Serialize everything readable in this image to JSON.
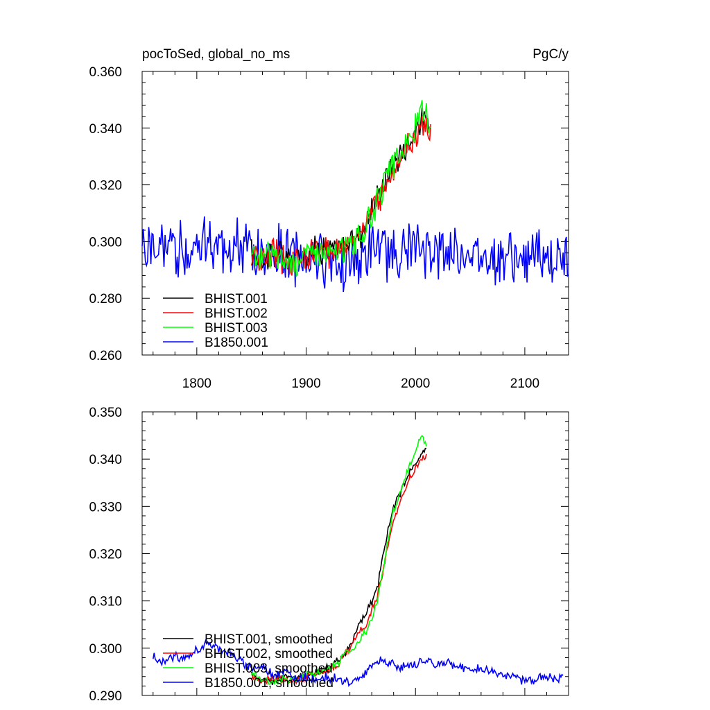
{
  "colors": {
    "BHIST.001": "#000000",
    "BHIST.002": "#ff0000",
    "BHIST.003": "#00ff00",
    "B1850.001": "#0000ff"
  },
  "chart_data": [
    {
      "type": "line",
      "title_left": "pocToSed, global_no_ms",
      "title_right": "PgC/y",
      "xlim": [
        1750,
        2140
      ],
      "ylim": [
        0.26,
        0.36
      ],
      "xticks": [
        1800,
        1900,
        2000,
        2100
      ],
      "xtick_labels": [
        "1800",
        "1900",
        "2000",
        "2100"
      ],
      "yticks": [
        0.26,
        0.28,
        0.3,
        0.32,
        0.34,
        0.36
      ],
      "ytick_labels": [
        "0.260",
        "0.280",
        "0.300",
        "0.320",
        "0.340",
        "0.360"
      ],
      "legend_position": "bottom-left",
      "series": [
        {
          "name": "BHIST.001",
          "x": [
            1850,
            1860,
            1870,
            1880,
            1890,
            1900,
            1910,
            1920,
            1930,
            1940,
            1950,
            1960,
            1970,
            1980,
            1990,
            2000,
            2005,
            2010,
            2014
          ],
          "values": [
            0.296,
            0.293,
            0.297,
            0.295,
            0.294,
            0.296,
            0.298,
            0.297,
            0.297,
            0.3,
            0.303,
            0.311,
            0.32,
            0.328,
            0.333,
            0.339,
            0.343,
            0.341,
            0.34
          ]
        },
        {
          "name": "BHIST.002",
          "x": [
            1850,
            1860,
            1870,
            1880,
            1890,
            1900,
            1910,
            1920,
            1930,
            1940,
            1950,
            1960,
            1970,
            1980,
            1990,
            2000,
            2005,
            2010,
            2014
          ],
          "values": [
            0.295,
            0.293,
            0.296,
            0.294,
            0.293,
            0.295,
            0.297,
            0.296,
            0.298,
            0.3,
            0.305,
            0.309,
            0.318,
            0.326,
            0.332,
            0.337,
            0.342,
            0.34,
            0.338
          ]
        },
        {
          "name": "BHIST.003",
          "x": [
            1850,
            1860,
            1870,
            1880,
            1890,
            1900,
            1910,
            1920,
            1930,
            1940,
            1950,
            1960,
            1970,
            1980,
            1990,
            2000,
            2005,
            2010,
            2014
          ],
          "values": [
            0.295,
            0.294,
            0.296,
            0.293,
            0.293,
            0.296,
            0.297,
            0.295,
            0.297,
            0.299,
            0.302,
            0.309,
            0.319,
            0.327,
            0.333,
            0.34,
            0.346,
            0.343,
            0.341
          ]
        },
        {
          "name": "B1850.001",
          "x": [
            1750,
            1760,
            1770,
            1780,
            1790,
            1800,
            1810,
            1820,
            1830,
            1840,
            1850,
            1860,
            1870,
            1880,
            1890,
            1900,
            1910,
            1920,
            1930,
            1940,
            1950,
            1960,
            1970,
            1980,
            1990,
            2000,
            2010,
            2020,
            2030,
            2040,
            2050,
            2060,
            2070,
            2080,
            2090,
            2100,
            2110,
            2120,
            2130,
            2140
          ],
          "values": [
            0.298,
            0.297,
            0.297,
            0.298,
            0.297,
            0.299,
            0.3,
            0.299,
            0.297,
            0.297,
            0.296,
            0.296,
            0.295,
            0.296,
            0.294,
            0.295,
            0.295,
            0.294,
            0.294,
            0.293,
            0.294,
            0.296,
            0.297,
            0.296,
            0.296,
            0.297,
            0.297,
            0.296,
            0.297,
            0.296,
            0.296,
            0.295,
            0.296,
            0.295,
            0.294,
            0.293,
            0.294,
            0.294,
            0.293,
            0.294
          ]
        }
      ],
      "noise": [
        0,
        0.004,
        0.004,
        0.004,
        0.008
      ]
    },
    {
      "type": "line",
      "xlim": [
        1750,
        2140
      ],
      "ylim": [
        0.29,
        0.35
      ],
      "xticks": [
        1800,
        1900,
        2000,
        2100
      ],
      "yticks": [
        0.29,
        0.3,
        0.31,
        0.32,
        0.33,
        0.34,
        0.35
      ],
      "ytick_labels": [
        "0.290",
        "0.300",
        "0.310",
        "0.320",
        "0.330",
        "0.340",
        "0.350"
      ],
      "legend_position": "bottom-left",
      "series": [
        {
          "name": "BHIST.001, smoothed",
          "x": [
            1850,
            1860,
            1870,
            1880,
            1890,
            1900,
            1910,
            1920,
            1930,
            1935,
            1940,
            1945,
            1950,
            1955,
            1960,
            1965,
            1970,
            1975,
            1980,
            1985,
            1990,
            1995,
            2000,
            2005,
            2010
          ],
          "values": [
            0.2945,
            0.2935,
            0.293,
            0.294,
            0.2935,
            0.2945,
            0.295,
            0.296,
            0.2975,
            0.299,
            0.3,
            0.303,
            0.3055,
            0.3075,
            0.31,
            0.3125,
            0.319,
            0.325,
            0.33,
            0.332,
            0.335,
            0.3375,
            0.339,
            0.341,
            0.342
          ]
        },
        {
          "name": "BHIST.002, smoothed",
          "x": [
            1850,
            1860,
            1870,
            1880,
            1890,
            1900,
            1910,
            1920,
            1930,
            1935,
            1940,
            1945,
            1950,
            1955,
            1960,
            1965,
            1970,
            1975,
            1980,
            1985,
            1990,
            1995,
            2000,
            2005,
            2010
          ],
          "values": [
            0.294,
            0.293,
            0.2935,
            0.2935,
            0.293,
            0.294,
            0.2945,
            0.2955,
            0.2965,
            0.2985,
            0.3,
            0.302,
            0.304,
            0.305,
            0.308,
            0.311,
            0.316,
            0.322,
            0.327,
            0.33,
            0.333,
            0.336,
            0.338,
            0.34,
            0.3405
          ]
        },
        {
          "name": "BHIST.003, smoothed",
          "x": [
            1850,
            1860,
            1870,
            1880,
            1890,
            1900,
            1910,
            1920,
            1930,
            1935,
            1940,
            1945,
            1950,
            1955,
            1960,
            1965,
            1970,
            1975,
            1980,
            1985,
            1990,
            1995,
            2000,
            2005,
            2010
          ],
          "values": [
            0.2945,
            0.2935,
            0.2925,
            0.2935,
            0.293,
            0.2945,
            0.2945,
            0.2955,
            0.297,
            0.299,
            0.2995,
            0.3,
            0.302,
            0.3035,
            0.306,
            0.31,
            0.316,
            0.323,
            0.329,
            0.332,
            0.336,
            0.339,
            0.341,
            0.3455,
            0.343
          ]
        },
        {
          "name": "B1850.001, smoothed",
          "x": [
            1760,
            1770,
            1780,
            1790,
            1800,
            1810,
            1820,
            1830,
            1840,
            1850,
            1860,
            1870,
            1880,
            1890,
            1900,
            1910,
            1920,
            1930,
            1940,
            1950,
            1960,
            1970,
            1980,
            1990,
            2000,
            2010,
            2020,
            2030,
            2040,
            2050,
            2060,
            2070,
            2080,
            2090,
            2100,
            2110,
            2120,
            2130,
            2135
          ],
          "values": [
            0.298,
            0.297,
            0.2985,
            0.2975,
            0.2995,
            0.301,
            0.3,
            0.299,
            0.297,
            0.296,
            0.296,
            0.2945,
            0.295,
            0.2935,
            0.294,
            0.2935,
            0.294,
            0.2935,
            0.2925,
            0.294,
            0.296,
            0.2975,
            0.2965,
            0.296,
            0.2965,
            0.2975,
            0.2965,
            0.297,
            0.296,
            0.2955,
            0.2955,
            0.295,
            0.2945,
            0.294,
            0.293,
            0.2935,
            0.294,
            0.293,
            0.2945
          ]
        }
      ],
      "noise": [
        0.0006,
        0.0006,
        0.0006,
        0.0008
      ]
    }
  ]
}
